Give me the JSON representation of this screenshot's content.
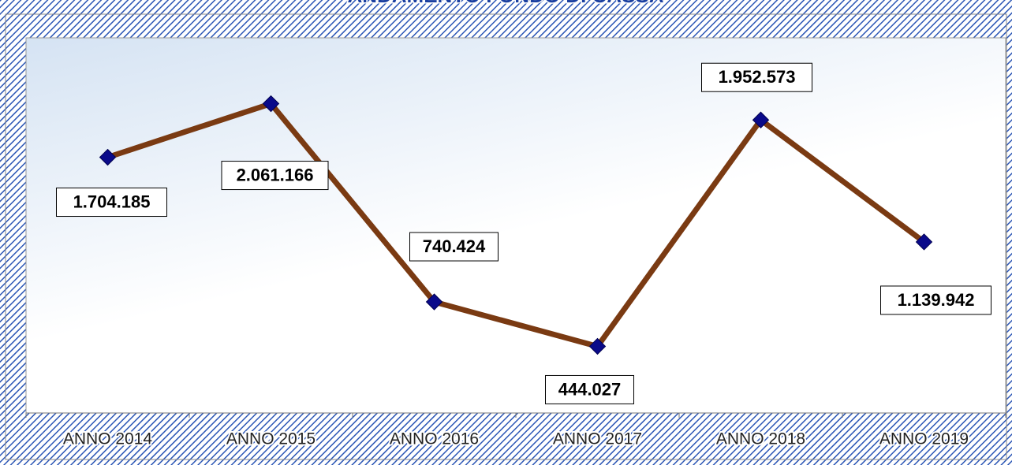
{
  "chart_data": {
    "type": "line",
    "title": "ANDAMENTO FONDO DI CASSA",
    "categories": [
      "ANNO 2014",
      "ANNO 2015",
      "ANNO 2016",
      "ANNO 2017",
      "ANNO 2018",
      "ANNO 2019"
    ],
    "series": [
      {
        "name": "Fondo di cassa",
        "color": "#7a3a12",
        "marker_color": "#0a0a8a",
        "values": [
          1704185,
          2061166,
          740424,
          444027,
          1952573,
          1139942
        ],
        "value_labels": [
          "1.704.185",
          "2.061.166",
          "740.424",
          "444.027",
          "1.952.573",
          "1.139.942"
        ]
      }
    ],
    "ylim": [
      0,
      2500000
    ]
  }
}
